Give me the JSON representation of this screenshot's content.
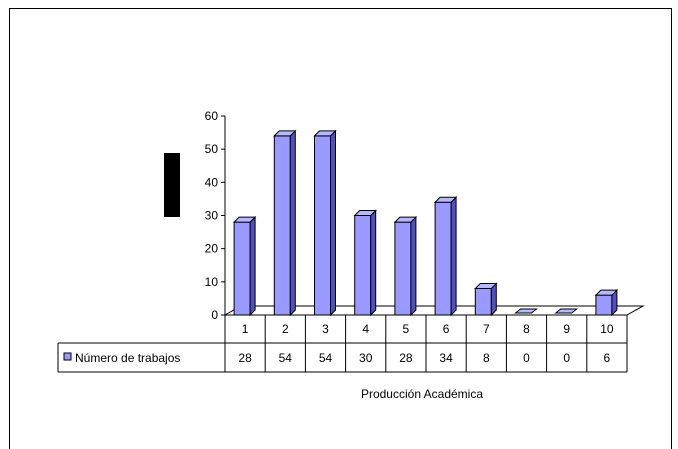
{
  "chart_data": {
    "type": "bar",
    "categories": [
      "1",
      "2",
      "3",
      "4",
      "5",
      "6",
      "7",
      "8",
      "9",
      "10"
    ],
    "series": [
      {
        "name": "Número de trabajos",
        "values": [
          28,
          54,
          54,
          30,
          28,
          34,
          8,
          0,
          0,
          6
        ],
        "color": "#9999ff"
      }
    ],
    "xlabel": "Producción Académica",
    "ylim": [
      0,
      60
    ],
    "yticks": [
      "0",
      "10",
      "20",
      "30",
      "40",
      "50",
      "60"
    ],
    "data_table": true,
    "legend_placement": "data-table-left",
    "grid": false
  }
}
